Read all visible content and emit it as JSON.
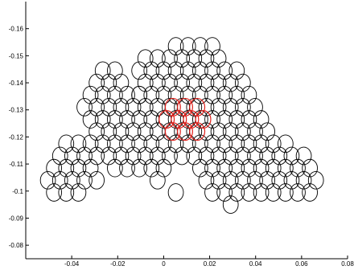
{
  "chart_data": {
    "type": "scatter",
    "marker": "open-ellipse",
    "xlim": [
      -0.06,
      0.08
    ],
    "ylim": [
      -0.075,
      -0.17
    ],
    "y_axis_reversed": true,
    "grid": false,
    "xticks": [
      "-0.04",
      "-0.02",
      "0",
      "0.02",
      "0.04",
      "0.06",
      "0.08"
    ],
    "yticks": [
      "-0.16",
      "-0.15",
      "-0.14",
      "-0.13",
      "-0.12",
      "-0.11",
      "-0.1",
      "-0.09",
      "-0.08"
    ],
    "xtick_values": [
      -0.04,
      -0.02,
      0,
      0.02,
      0.04,
      0.06,
      0.08
    ],
    "ytick_values": [
      -0.16,
      -0.15,
      -0.14,
      -0.13,
      -0.12,
      -0.11,
      -0.1,
      -0.09,
      -0.08
    ],
    "lattice": {
      "dx": 0.0053,
      "dy": 0.0045,
      "odd_row_offset": 0.00265
    },
    "rows": [
      {
        "y": -0.1535,
        "x_ranges": [
          [
            0.002,
            0.023
          ]
        ]
      },
      {
        "y": -0.149,
        "x_ranges": [
          [
            -0.009,
            0.028
          ]
        ]
      },
      {
        "y": -0.1445,
        "x_ranges": [
          [
            -0.028,
            -0.017
          ],
          [
            -0.011,
            0.033
          ]
        ]
      },
      {
        "y": -0.14,
        "x_ranges": [
          [
            -0.03,
            -0.014
          ],
          [
            -0.011,
            0.036
          ]
        ]
      },
      {
        "y": -0.1355,
        "x_ranges": [
          [
            -0.036,
            -0.01
          ],
          [
            -0.011,
            0.038
          ]
        ]
      },
      {
        "y": -0.131,
        "x_ranges": [
          [
            -0.038,
            0.04
          ]
        ]
      },
      {
        "y": -0.1265,
        "x_ranges": [
          [
            -0.036,
            0.043
          ]
        ]
      },
      {
        "y": -0.122,
        "x_ranges": [
          [
            -0.033,
            0.049
          ]
        ]
      },
      {
        "y": -0.1175,
        "x_ranges": [
          [
            -0.045,
            0.055
          ]
        ]
      },
      {
        "y": -0.113,
        "x_ranges": [
          [
            -0.048,
            0.065
          ]
        ]
      },
      {
        "y": -0.1085,
        "x_ranges": [
          [
            -0.05,
            -0.03
          ],
          [
            -0.022,
            0.001
          ],
          [
            0.014,
            0.068
          ]
        ]
      },
      {
        "y": -0.104,
        "x_ranges": [
          [
            -0.052,
            -0.024
          ],
          [
            -0.005,
            -0.002
          ],
          [
            0.018,
            0.069
          ]
        ]
      },
      {
        "y": -0.0995,
        "x_ranges": [
          [
            -0.05,
            -0.036
          ],
          [
            0.003,
            0.006
          ],
          [
            0.021,
            0.066
          ]
        ]
      },
      {
        "y": -0.095,
        "x_ranges": [
          [
            0.025,
            0.032
          ],
          [
            0.049,
            0.05
          ]
        ]
      }
    ],
    "highlight_color": "#e0201b",
    "normal_color": "#000000",
    "highlighted": [
      [
        0.004,
        -0.131
      ],
      [
        0.0093,
        -0.131
      ],
      [
        0.0146,
        -0.131
      ],
      [
        0.0013,
        -0.1265
      ],
      [
        0.0066,
        -0.1265
      ],
      [
        0.0119,
        -0.1265
      ],
      [
        0.0172,
        -0.1265
      ],
      [
        0.004,
        -0.122
      ],
      [
        0.0093,
        -0.122
      ],
      [
        0.0146,
        -0.122
      ]
    ]
  }
}
